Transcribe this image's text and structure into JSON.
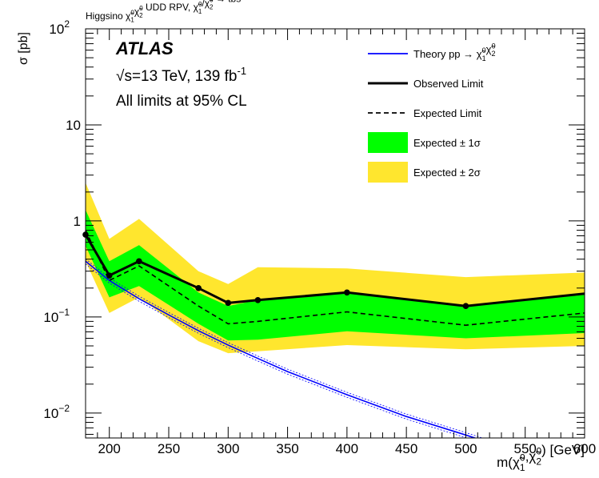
{
  "chart_data": {
    "type": "line",
    "title_parts": [
      "Higgsino ",
      "χ̃",
      "1",
      "0",
      "χ̃",
      "2",
      "0",
      " UDD RPV, ",
      "χ̃",
      "1",
      "0",
      "/",
      "χ̃",
      "2",
      "0",
      " → tbs"
    ],
    "xlabel_parts": [
      "m(",
      "χ̃",
      "1",
      "0",
      ",",
      "χ̃",
      "2",
      "0",
      ") [GeV]"
    ],
    "ylabel": "σ [pb]",
    "experiment": "ATLAS",
    "energy_parts": [
      "√",
      "s=13 TeV, 139 fb",
      "-1"
    ],
    "cl_text": "All limits at 95% CL",
    "xlim": [
      180,
      600
    ],
    "ylim": [
      0.0055,
      100
    ],
    "yscale": "log",
    "x_ticks": [
      200,
      250,
      300,
      350,
      400,
      450,
      500,
      550,
      600
    ],
    "x_tick_labels": [
      "200",
      "250",
      "300",
      "350",
      "400",
      "450",
      "500",
      "550",
      "600"
    ],
    "y_ticks": [
      0.01,
      0.1,
      1,
      10,
      100
    ],
    "y_tick_labels": [
      {
        "base": "10",
        "exp": "−2"
      },
      {
        "base": "10",
        "exp": "−1"
      },
      {
        "base": "1",
        "exp": ""
      },
      {
        "base": "10",
        "exp": ""
      },
      {
        "base": "10",
        "exp": "2"
      }
    ],
    "legend": {
      "placement": "top-right",
      "entries": [
        {
          "key": "theory",
          "style": "line",
          "color": "#0000ff",
          "label_parts": [
            "Theory pp → ",
            "χ̃",
            "1",
            "0",
            "χ̃",
            "2",
            "0"
          ]
        },
        {
          "key": "observed",
          "style": "thick-line",
          "color": "#000000",
          "label_parts": [
            "Observed Limit"
          ]
        },
        {
          "key": "expected",
          "style": "dashed-line",
          "color": "#000000",
          "label_parts": [
            "Expected Limit"
          ]
        },
        {
          "key": "band1",
          "style": "box",
          "color": "#00ff00",
          "label_parts": [
            "Expected ± 1σ"
          ]
        },
        {
          "key": "band2",
          "style": "box",
          "color": "#ffe62e",
          "label_parts": [
            "Expected ± 2σ"
          ]
        }
      ]
    },
    "series": {
      "band2": {
        "x": [
          180,
          200,
          225,
          275,
          300,
          325,
          400,
          500,
          600
        ],
        "lo": [
          0.38,
          0.11,
          0.16,
          0.056,
          0.042,
          0.044,
          0.051,
          0.046,
          0.05
        ],
        "hi": [
          2.5,
          0.65,
          1.05,
          0.3,
          0.22,
          0.33,
          0.32,
          0.26,
          0.29
        ]
      },
      "band1": {
        "x": [
          180,
          200,
          225,
          275,
          300,
          325,
          400,
          500,
          600
        ],
        "lo": [
          0.55,
          0.16,
          0.21,
          0.085,
          0.057,
          0.058,
          0.071,
          0.06,
          0.068
        ],
        "hi": [
          1.3,
          0.38,
          0.56,
          0.18,
          0.13,
          0.15,
          0.18,
          0.13,
          0.17
        ]
      },
      "expected": {
        "x": [
          180,
          200,
          225,
          275,
          300,
          325,
          400,
          500,
          600
        ],
        "y": [
          0.8,
          0.24,
          0.34,
          0.13,
          0.085,
          0.09,
          0.113,
          0.082,
          0.11
        ]
      },
      "observed": {
        "x": [
          180,
          200,
          225,
          275,
          300,
          325,
          400,
          500,
          600
        ],
        "y": [
          0.72,
          0.27,
          0.38,
          0.2,
          0.14,
          0.15,
          0.18,
          0.13,
          0.175
        ]
      },
      "observed_markers": [
        180,
        200,
        225,
        275,
        300,
        325,
        400,
        500
      ],
      "theory": {
        "x": [
          180,
          200,
          225,
          250,
          275,
          300,
          325,
          350,
          400,
          450,
          500,
          520
        ],
        "y": [
          0.38,
          0.24,
          0.155,
          0.105,
          0.072,
          0.051,
          0.037,
          0.027,
          0.0155,
          0.0092,
          0.0059,
          0.0049
        ],
        "uncertainty": 0.06
      }
    },
    "colors": {
      "band2": "#ffe62e",
      "band1": "#00ff00",
      "theory": "#0000ff",
      "line": "#000000"
    }
  }
}
